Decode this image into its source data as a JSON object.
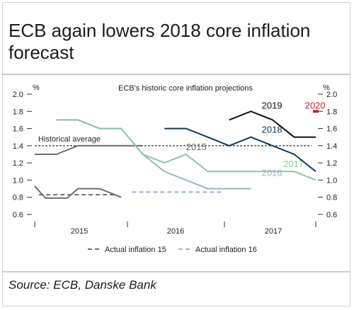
{
  "header": {
    "title": "ECB again lowers 2018 core inflation forecast"
  },
  "footer": {
    "source": "Source: ECB, Danske Bank"
  },
  "chart_data": {
    "type": "line",
    "title": "ECB's historic core inflation projections",
    "ylabel_left": "%",
    "ylabel_right": "%",
    "ylim": [
      0.6,
      2.0
    ],
    "yticks": [
      0.6,
      0.8,
      1.0,
      1.2,
      1.4,
      1.6,
      1.8,
      2.0
    ],
    "yticks_labels": [
      "0.6",
      "0.8",
      "1.0",
      "1.2",
      "1.4",
      "1.6",
      "1.8",
      "2.0"
    ],
    "x_categories": [
      "2015",
      "2016",
      "2017"
    ],
    "grid": false,
    "reference_line": {
      "label": "Historical average",
      "value": 1.4,
      "color": "#000000"
    },
    "series": [
      {
        "name": "2015",
        "color": "#6e6e6e",
        "label_at": [
          7.0,
          1.35
        ],
        "points": [
          [
            0,
            1.3
          ],
          [
            1,
            1.3
          ],
          [
            2,
            1.4
          ],
          [
            3,
            1.4
          ],
          [
            4,
            1.4
          ],
          [
            5,
            1.4
          ]
        ]
      },
      {
        "name": "2016",
        "color": "#9fb1cc",
        "label_at": [
          10.5,
          1.05
        ],
        "points": [
          [
            1,
            1.7
          ],
          [
            2,
            1.7
          ],
          [
            3,
            1.6
          ],
          [
            4,
            1.6
          ],
          [
            5,
            1.3
          ],
          [
            6,
            1.1
          ],
          [
            7,
            1.0
          ],
          [
            8,
            0.9
          ],
          [
            9,
            0.9
          ],
          [
            10,
            0.9
          ]
        ]
      },
      {
        "name": "2017",
        "color": "#8fc4a3",
        "label_at": [
          11.5,
          1.15
        ],
        "points": [
          [
            1,
            1.7
          ],
          [
            2,
            1.7
          ],
          [
            3,
            1.6
          ],
          [
            4,
            1.6
          ],
          [
            5,
            1.3
          ],
          [
            6,
            1.2
          ],
          [
            7,
            1.3
          ],
          [
            8,
            1.1
          ],
          [
            9,
            1.1
          ],
          [
            10,
            1.1
          ],
          [
            11,
            1.1
          ],
          [
            12,
            1.1
          ],
          [
            13,
            1.0
          ]
        ]
      },
      {
        "name": "2018",
        "color": "#0f3a5c",
        "label_at": [
          10.5,
          1.55
        ],
        "points": [
          [
            6,
            1.6
          ],
          [
            7,
            1.6
          ],
          [
            8,
            1.5
          ],
          [
            9,
            1.4
          ],
          [
            10,
            1.5
          ],
          [
            11,
            1.4
          ],
          [
            12,
            1.3
          ],
          [
            13,
            1.1
          ]
        ]
      },
      {
        "name": "2019",
        "color": "#111111",
        "label_at": [
          10.5,
          1.83
        ],
        "points": [
          [
            9,
            1.7
          ],
          [
            10,
            1.8
          ],
          [
            11,
            1.7
          ],
          [
            12,
            1.5
          ],
          [
            13,
            1.5
          ]
        ]
      },
      {
        "name": "2020",
        "color": "#c0262c",
        "label_at": [
          12.5,
          1.83
        ],
        "points": [
          [
            13,
            1.8
          ]
        ]
      }
    ],
    "actuals": [
      {
        "name": "Actual inflation 15",
        "color": "#6e6e6e",
        "label_at": [
          1.5,
          0.83
        ],
        "points": [
          [
            0,
            0.93
          ],
          [
            0.5,
            0.79
          ],
          [
            1,
            0.79
          ],
          [
            1.5,
            0.79
          ],
          [
            2,
            0.9
          ],
          [
            2.5,
            0.9
          ],
          [
            3,
            0.9
          ],
          [
            3.5,
            0.85
          ],
          [
            4,
            0.8
          ]
        ]
      },
      {
        "name": "Actual inflation 16",
        "color": "#9fb1cc",
        "label_at": [
          4.5,
          0.86
        ]
      }
    ],
    "legend": {
      "position": "bottom",
      "items": [
        {
          "label": "Actual inflation 15",
          "color": "#6e6e6e"
        },
        {
          "label": "Actual inflation 16",
          "color": "#9fb1cc"
        }
      ]
    }
  }
}
